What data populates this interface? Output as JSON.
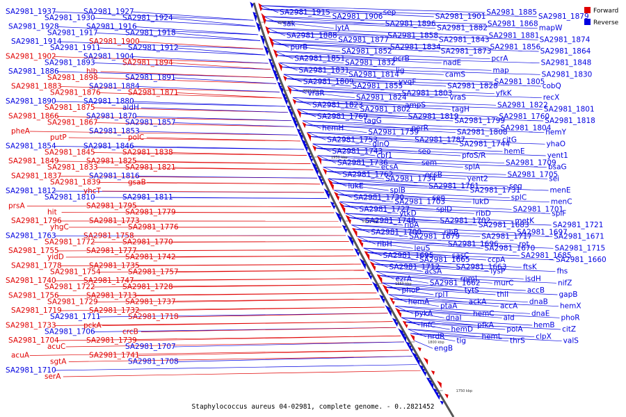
{
  "caption": "Staphylococcus aureus 04-02981, complete genome. - 0..2821452",
  "legend": [
    {
      "label": "Forward",
      "color": "#e00000"
    },
    {
      "label": "Reverse",
      "color": "#0000e0"
    }
  ],
  "ticks": [
    "2050 kbp",
    "2000 kbp",
    "1950 kbp",
    "1900 kbp",
    "1850 kbp",
    "1800 kbp",
    "1750 kbp"
  ],
  "colors": {
    "forward": "#e00000",
    "reverse": "#0000e0",
    "backbone": "#555555"
  },
  "left_labels": [
    [
      "SA2981_1937",
      "r"
    ],
    [
      "SA2981_1930",
      "r"
    ],
    [
      "SA2981_1927",
      "r"
    ],
    [
      "SA2981_1924",
      "r"
    ],
    [
      "SA2981_1928",
      "r"
    ],
    [
      "SA2981_1917",
      "r"
    ],
    [
      "SA2981_1916",
      "r"
    ],
    [
      "SA2981_1918",
      "r"
    ],
    [
      "SA2981_1914",
      "r"
    ],
    [
      "SA2981_1911",
      "r"
    ],
    [
      "SA2981_1900",
      "f"
    ],
    [
      "SA2981_1912",
      "r"
    ],
    [
      "SA2981_1902",
      "f"
    ],
    [
      "SA2981_1893",
      "r"
    ],
    [
      "SA2981_1904",
      "r"
    ],
    [
      "SA2981_1894",
      "f"
    ],
    [
      "SA2981_1886",
      "r"
    ],
    [
      "SA2981_1898",
      "f"
    ],
    [
      "hlb",
      "f"
    ],
    [
      "SA2981_1891",
      "r"
    ],
    [
      "SA2981_1883",
      "f"
    ],
    [
      "SA2981_1876",
      "f"
    ],
    [
      "SA2981_1884",
      "r"
    ],
    [
      "SA2981_1871",
      "f"
    ],
    [
      "SA2981_1890",
      "r"
    ],
    [
      "SA2981_1875",
      "f"
    ],
    [
      "SA2981_1880",
      "r"
    ],
    [
      "aldH",
      "r"
    ],
    [
      "SA2981_1866",
      "f"
    ],
    [
      "SA2981_1867",
      "f"
    ],
    [
      "SA2981_1870",
      "r"
    ],
    [
      "SA2981_1857",
      "r"
    ],
    [
      "pheA",
      "f"
    ],
    [
      "putP",
      "f"
    ],
    [
      "SA2981_1853",
      "r"
    ],
    [
      "polC",
      "f"
    ],
    [
      "SA2981_1854",
      "r"
    ],
    [
      "SA2981_1845",
      "f"
    ],
    [
      "SA2981_1846",
      "r"
    ],
    [
      "SA2981_1838",
      "f"
    ],
    [
      "SA2981_1849",
      "f"
    ],
    [
      "SA2981_1833",
      "f"
    ],
    [
      "SA2981_1825",
      "f"
    ],
    [
      "SA2981_1821",
      "f"
    ],
    [
      "SA2981_1837",
      "f"
    ],
    [
      "SA2981_1839",
      "f"
    ],
    [
      "SA2981_1816",
      "r"
    ],
    [
      "gsaB",
      "f"
    ],
    [
      "SA2981_1812",
      "r"
    ],
    [
      "SA2981_1810",
      "r"
    ],
    [
      "yhcT",
      "f"
    ],
    [
      "SA2981_1811",
      "r"
    ],
    [
      "prsA",
      "f"
    ],
    [
      "hit",
      "f"
    ],
    [
      "SA2981_1795",
      "f"
    ],
    [
      "SA2981_1779",
      "f"
    ],
    [
      "SA2981_1796",
      "f"
    ],
    [
      "yhgC",
      "f"
    ],
    [
      "SA2981_1773",
      "f"
    ],
    [
      "SA2981_1776",
      "f"
    ],
    [
      "SA2981_1763",
      "r"
    ],
    [
      "SA2981_1772",
      "f"
    ],
    [
      "SA2981_1758",
      "f"
    ],
    [
      "SA2981_1770",
      "f"
    ],
    [
      "SA2981_1755",
      "f"
    ],
    [
      "yidD",
      "f"
    ],
    [
      "SA2981_1777",
      "f"
    ],
    [
      "SA2981_1742",
      "f"
    ],
    [
      "SA2981_1778",
      "f"
    ],
    [
      "SA2981_1754",
      "f"
    ],
    [
      "SA2981_1735",
      "f"
    ],
    [
      "SA2981_1757",
      "f"
    ],
    [
      "SA2981_1740",
      "f"
    ],
    [
      "SA2981_1722",
      "f"
    ],
    [
      "SA2981_1747",
      "f"
    ],
    [
      "SA2981_1728",
      "f"
    ],
    [
      "SA2981_1756",
      "f"
    ],
    [
      "SA2981_1729",
      "f"
    ],
    [
      "SA2981_1713",
      "f"
    ],
    [
      "SA2981_1737",
      "f"
    ],
    [
      "SA2981_1719",
      "f"
    ],
    [
      "SA2981_1711",
      "r"
    ],
    [
      "SA2981_1732",
      "f"
    ],
    [
      "SA2981_1718",
      "f"
    ],
    [
      "SA2981_1733",
      "f"
    ],
    [
      "SA2981_1706",
      "r"
    ],
    [
      "pckA",
      "f"
    ],
    [
      "crcB",
      "f"
    ],
    [
      "SA2981_1704",
      "f"
    ],
    [
      "acuC",
      "f"
    ],
    [
      "SA2981_1739",
      "f"
    ],
    [
      "SA2981_1707",
      "r"
    ],
    [
      "acuA",
      "f"
    ],
    [
      "sgtA",
      "f"
    ],
    [
      "SA2981_1741",
      "f"
    ],
    [
      "SA2981_1708",
      "r"
    ],
    [
      "SA2981_1710",
      "r"
    ],
    [
      "serA",
      "f"
    ]
  ],
  "right_labels": [
    "SA2981_1915",
    "SA2981_1906",
    "sep",
    "SA2981_1901",
    "SA2981_1885",
    "SA2981_1879",
    "sak",
    "lytA",
    "SA2981_1896",
    "SA2981_1882",
    "SA2981_1868",
    "mapW",
    "SA2981_1888",
    "SA2981_1877",
    "SA2981_1858",
    "SA2981_1843",
    "SA2981_1881",
    "SA2981_1874",
    "purB",
    "SA2981_1852",
    "SA2981_1834",
    "SA2981_1873",
    "SA2981_1856",
    "SA2981_1864",
    "SA2981_1851",
    "SA2981_1832",
    "pcrB",
    "nadE",
    "pcrA",
    "SA2981_1848",
    "SA2981_1831",
    "SA2981_1814",
    "lig",
    "camS",
    "map",
    "SA2981_1830",
    "SA2981_1809",
    "SA2981_1855",
    "yvqF",
    "SA2981_1828",
    "SA2981_1805",
    "cobQ",
    "vraR",
    "SA2981_1824",
    "SA2981_1803",
    "vraS",
    "yfkK",
    "recX",
    "SA2981_1823",
    "SA2981_1802",
    "ampS",
    "tagH",
    "SA2981_1822",
    "SA2981_1801",
    "SA2981_1769",
    "tagG",
    "SA2981_1819",
    "SA2981_1799",
    "SA2981_1760",
    "SA2981_1818",
    "hemH",
    "SA2981_1759",
    "perR",
    "SA2981_1808",
    "SA2981_1804",
    "hemY",
    "SA2981_1753",
    "glnQ",
    "SA2981_1787",
    "SA2981_1744",
    "citG",
    "yhaO",
    "SA2981_1743",
    "cbf1",
    "seo",
    "pfoS/R",
    "hemE",
    "yent1",
    "SA2981_1736",
    "ecsA",
    "sem",
    "splA",
    "SA2981_1709",
    "bsaG",
    "SA2981_1762",
    "SA2981_1734",
    "ecsB",
    "yent2",
    "SA2981_1705",
    "sei",
    "lukE",
    "splB",
    "SA2981_1761",
    "SA2981_1731",
    "seg",
    "menE",
    "SA2981_1730",
    "SA2981_1703",
    "sen",
    "lukD",
    "splC",
    "menC",
    "SA2981_1727",
    "ytkD",
    "splD",
    "ribD",
    "SA2981_1701",
    "splF",
    "SA2981_1748",
    "ribA",
    "SA2981_1702",
    "SA2981_1683",
    "metK",
    "SA2981_1721",
    "SA2981_1700",
    "SA2981_1679",
    "ribB",
    "SA2981_1717",
    "SA2981_1697",
    "SA2981_1671",
    "ribH",
    "leuS",
    "SA2981_1696",
    "SA2981_1670",
    "rot",
    "SA2981_1715",
    "SA2981_1695",
    "SA2981_1665",
    "sasC",
    "ccpA",
    "SA2981_1685",
    "SA2981_1660",
    "SA2981_1712",
    "acsA",
    "SA2981_1663",
    "lysP",
    "ftsK",
    "fhs",
    "ezrA",
    "SA2981_1662",
    "rpmI",
    "murC",
    "isdH",
    "nifZ",
    "phoP",
    "rplT",
    "tytS",
    "thiI",
    "accB",
    "gapB",
    "hemA",
    "ptaA",
    "ackA",
    "accA",
    "dnaB",
    "hemX",
    "pykA",
    "dnaI",
    "hemC",
    "ald",
    "dnaE",
    "phoR",
    "infC",
    "hemD",
    "pfkA",
    "polA",
    "hemB",
    "citZ",
    "nrdR",
    "tig",
    "hemL",
    "thrS",
    "clpX",
    "valS",
    "engB"
  ]
}
